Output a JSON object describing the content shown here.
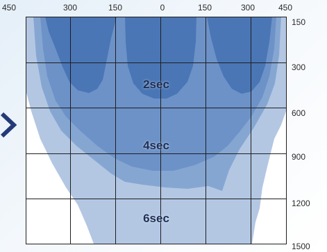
{
  "colors": {
    "outer_zone": "#b3c7e3",
    "middle_zone": "#86a6d2",
    "inner_zone": "#5e86c0",
    "core_zone": "#4a76b6",
    "grid": "#1e1e1e",
    "chevron": "#243a78"
  },
  "top_axis": {
    "labels": [
      "450",
      "300",
      "150",
      "0",
      "150",
      "300",
      "450"
    ]
  },
  "right_axis": {
    "labels": [
      "150",
      "300",
      "600",
      "900",
      "1200",
      "1500"
    ]
  },
  "zones": [
    {
      "label": "2sec"
    },
    {
      "label": "4sec"
    },
    {
      "label": "6sec"
    }
  ],
  "decor": {
    "chevron_icon": "chevron-right-icon"
  }
}
